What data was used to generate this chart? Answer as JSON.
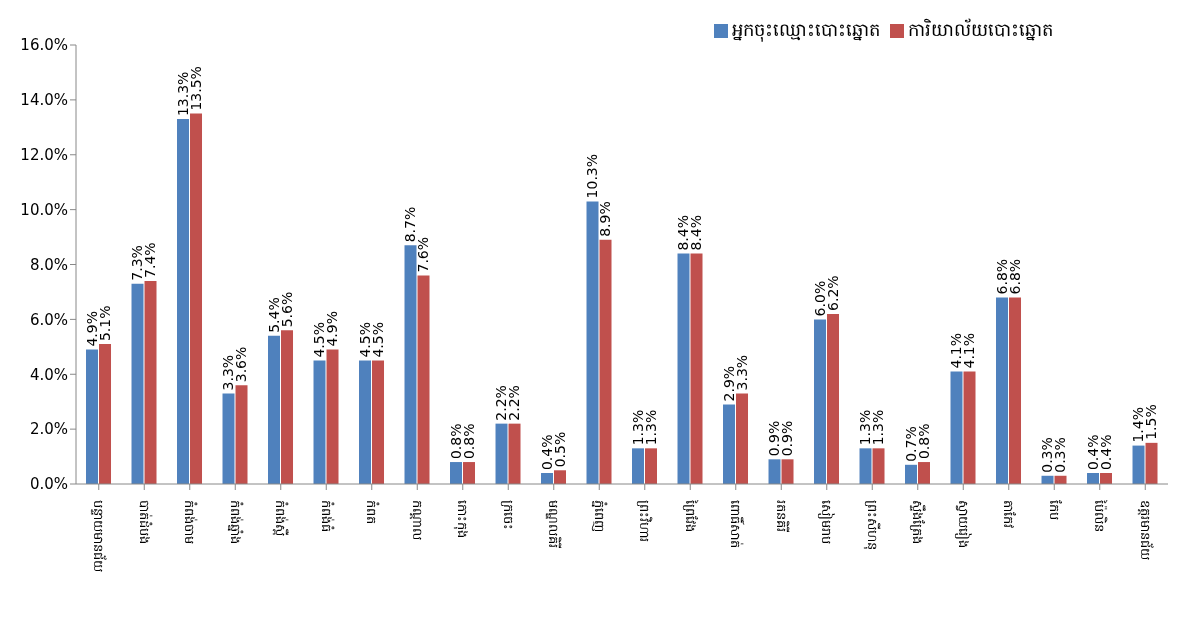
{
  "chart_data": {
    "type": "bar",
    "categories": [
      "បន្ទាយមានជ័យ",
      "បាត់ដំបង",
      "កំពង់ចាម",
      "កំពង់ឆ្នាំង",
      "កំពង់ស្ពឺ",
      "កំពង់ធំ",
      "កំពត",
      "កណ្តាល",
      "កោះកុង",
      "ក្រចេះ",
      "មណ្ឌលគិរី",
      "ភ្នំពេញ",
      "ព្រះវិហារ",
      "ព្រៃវែង",
      "ពោធិ៍សាត់",
      "រតនគិរី",
      "សៀមរាប",
      "ព្រះសីហនុ",
      "ស្ទឹងត្រែង",
      "ស្វាយរៀង",
      "តាកែវ",
      "កែប",
      "ប៉ៃលិន",
      "ឧត្តរមានជ័យ"
    ],
    "series": [
      {
        "name": "អ្នកចុះឈ្មោះបោះឆ្នោត",
        "color": "#4f81bd",
        "values": [
          4.9,
          7.3,
          13.3,
          3.3,
          5.4,
          4.5,
          4.5,
          8.7,
          0.8,
          2.2,
          0.4,
          10.3,
          1.3,
          8.4,
          2.9,
          0.9,
          6.0,
          1.3,
          0.7,
          4.1,
          6.8,
          0.3,
          0.4,
          1.4
        ],
        "value_labels": [
          "4.9%",
          "7.3%",
          "13.3%",
          "3.3%",
          "5.4%",
          "4.5%",
          "4.5%",
          "8.7%",
          "0.8%",
          "2.2%",
          "0.4%",
          "10.3%",
          "1.3%",
          "8.4%",
          "2.9%",
          "0.9%",
          "6.0%",
          "1.3%",
          "0.7%",
          "4.1%",
          "6.8%",
          "0.3%",
          "0.4%",
          "1.4%"
        ]
      },
      {
        "name": "ការិយាល័យបោះឆ្នោត",
        "color": "#c0504d",
        "values": [
          5.1,
          7.4,
          13.5,
          3.6,
          5.6,
          4.9,
          4.5,
          7.6,
          0.8,
          2.2,
          0.5,
          8.9,
          1.3,
          8.4,
          3.3,
          0.9,
          6.2,
          1.3,
          0.8,
          4.1,
          6.8,
          0.3,
          0.4,
          1.5
        ],
        "value_labels": [
          "5.1%",
          "7.4%",
          "13.5%",
          "3.6%",
          "5.6%",
          "4.9%",
          "4.5%",
          "7.6%",
          "0.8%",
          "2.2%",
          "0.5%",
          "8.9%",
          "1.3%",
          "8.4%",
          "3.3%",
          "0.9%",
          "6.2%",
          "1.3%",
          "0.8%",
          "4.1%",
          "6.8%",
          "0.3%",
          "0.4%",
          "1.5%"
        ]
      }
    ],
    "ylim": [
      0,
      16
    ],
    "yticks": [
      {
        "value": 0,
        "label": "0.0%"
      },
      {
        "value": 2,
        "label": "2.0%"
      },
      {
        "value": 4,
        "label": "4.0%"
      },
      {
        "value": 6,
        "label": "6.0%"
      },
      {
        "value": 8,
        "label": "8.0%"
      },
      {
        "value": 10,
        "label": "10.0%"
      },
      {
        "value": 12,
        "label": "12.0%"
      },
      {
        "value": 14,
        "label": "14.0%"
      },
      {
        "value": 16,
        "label": "16.0%"
      }
    ],
    "grid": false,
    "legend": "top"
  }
}
